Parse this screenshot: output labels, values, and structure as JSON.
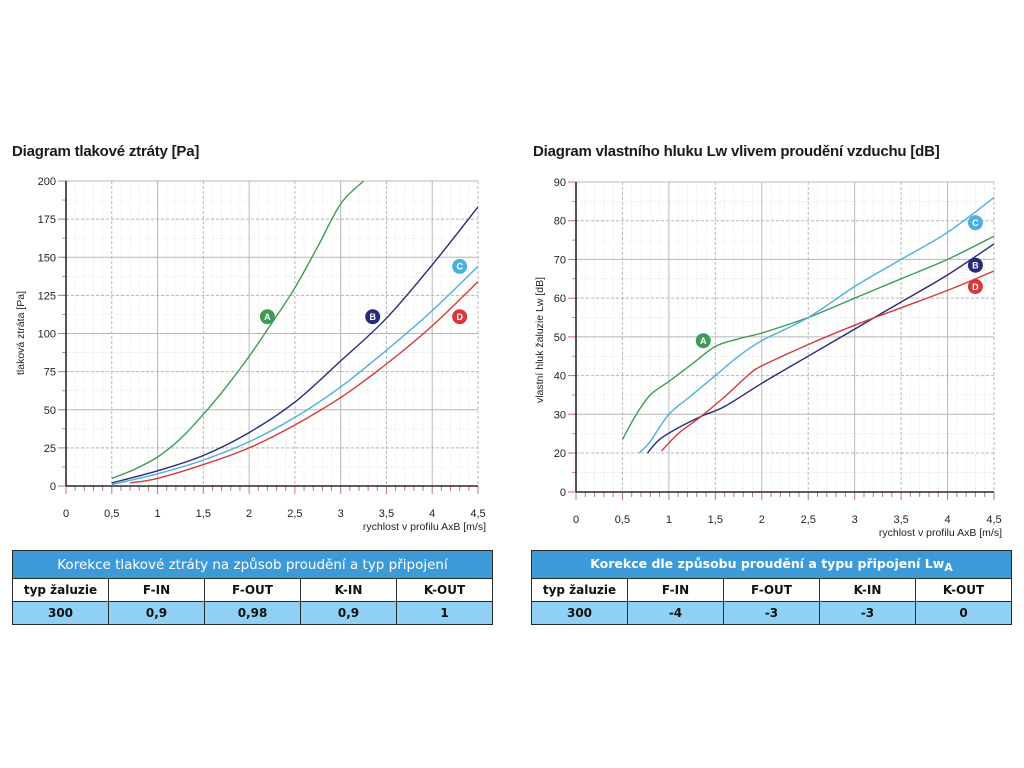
{
  "chart_data": [
    {
      "type": "line",
      "title": "Diagram tlakové ztráty [Pa]",
      "xlabel": "rychlost v profilu AxB [m/s]",
      "ylabel": "tlaková ztráta [Pa]",
      "xlim": [
        0,
        4.5
      ],
      "ylim": [
        0,
        200
      ],
      "x_ticks": [
        "0",
        "0,5",
        "1",
        "1,5",
        "2",
        "2,5",
        "3",
        "3,5",
        "4",
        "4,5"
      ],
      "y_ticks": [
        "0",
        "25",
        "50",
        "75",
        "100",
        "125",
        "150",
        "175",
        "200"
      ],
      "grid": true,
      "series": [
        {
          "name": "A",
          "color": "#3e9b55",
          "x": [
            0.5,
            0.75,
            1.0,
            1.25,
            1.5,
            1.75,
            2.0,
            2.25,
            2.5,
            2.75,
            3.0,
            3.25
          ],
          "y": [
            5,
            11,
            19,
            31,
            47,
            65,
            85,
            107,
            130,
            157,
            185,
            200
          ]
        },
        {
          "name": "B",
          "color": "#262c7a",
          "x": [
            0.5,
            1.0,
            1.5,
            2.0,
            2.5,
            3.0,
            3.5,
            4.0,
            4.5
          ],
          "y": [
            2,
            10,
            20,
            35,
            55,
            82,
            110,
            145,
            183
          ]
        },
        {
          "name": "C",
          "color": "#4bb0e0",
          "x": [
            0.5,
            1.0,
            1.5,
            2.0,
            2.5,
            3.0,
            3.5,
            4.0,
            4.5
          ],
          "y": [
            1,
            8,
            17,
            29,
            45,
            65,
            89,
            115,
            144
          ]
        },
        {
          "name": "D",
          "color": "#d7393a",
          "x": [
            0.7,
            1.0,
            1.5,
            2.0,
            2.5,
            3.0,
            3.5,
            4.0,
            4.5
          ],
          "y": [
            2,
            5,
            14,
            25,
            40,
            58,
            80,
            105,
            134
          ]
        }
      ],
      "labels": [
        {
          "text": "A",
          "x": 2.2,
          "y": 111
        },
        {
          "text": "B",
          "x": 3.35,
          "y": 111
        },
        {
          "text": "C",
          "x": 4.3,
          "y": 144
        },
        {
          "text": "D",
          "x": 4.3,
          "y": 111
        }
      ]
    },
    {
      "type": "line",
      "title": "Diagram vlastního hluku Lw vlivem proudění vzduchu [dB]",
      "xlabel": "rychlost v profilu AxB [m/s]",
      "ylabel": "vlastní hluk žaluzie Lw [dB]",
      "xlim": [
        0,
        4.5
      ],
      "ylim": [
        0,
        90
      ],
      "x_ticks": [
        "0",
        "0,5",
        "1",
        "1,5",
        "2",
        "2,5",
        "3",
        "3,5",
        "4",
        "4,5"
      ],
      "y_ticks": [
        "0",
        "20",
        "30",
        "40",
        "50",
        "60",
        "70",
        "80",
        "90"
      ],
      "grid": true,
      "series": [
        {
          "name": "A",
          "color": "#3e9b55",
          "x": [
            0.5,
            0.65,
            0.8,
            1.0,
            1.25,
            1.5,
            1.75,
            2.0,
            2.5,
            3.0,
            3.5,
            4.0,
            4.5
          ],
          "y": [
            23.5,
            30,
            35,
            38.5,
            43,
            47.5,
            49.5,
            51,
            55,
            60,
            65,
            70,
            76
          ]
        },
        {
          "name": "B",
          "color": "#262c7a",
          "x": [
            0.77,
            0.9,
            1.1,
            1.35,
            1.6,
            2.0,
            2.5,
            3.0,
            3.5,
            4.0,
            4.5
          ],
          "y": [
            20,
            23.5,
            26.5,
            29.5,
            32,
            38,
            45,
            52,
            59,
            66,
            74
          ]
        },
        {
          "name": "C",
          "color": "#4bb0e0",
          "x": [
            0.68,
            0.8,
            1.0,
            1.25,
            1.5,
            1.75,
            2.0,
            2.5,
            3.0,
            3.5,
            4.0,
            4.5
          ],
          "y": [
            20,
            23,
            30,
            35,
            40,
            45,
            49,
            55,
            63,
            70,
            77,
            86
          ]
        },
        {
          "name": "D",
          "color": "#d7393a",
          "x": [
            0.92,
            1.1,
            1.35,
            1.6,
            1.85,
            2.0,
            2.5,
            3.0,
            3.5,
            4.0,
            4.5
          ],
          "y": [
            20.5,
            25,
            29.5,
            34.5,
            40,
            42.5,
            48,
            53,
            57.5,
            62,
            67
          ]
        }
      ],
      "labels": [
        {
          "text": "A",
          "x": 1.37,
          "y": 49
        },
        {
          "text": "B",
          "x": 4.3,
          "y": 68.5
        },
        {
          "text": "C",
          "x": 4.3,
          "y": 79.5
        },
        {
          "text": "D",
          "x": 4.3,
          "y": 63
        }
      ]
    }
  ],
  "tables": [
    {
      "title": "Korekce tlakové ztráty na způsob proudění a typ připojení",
      "title_suffix": "",
      "columns": [
        "typ žaluzie",
        "F-IN",
        "F-OUT",
        "K-IN",
        "K-OUT"
      ],
      "values": [
        "300",
        "0,9",
        "0,98",
        "0,9",
        "1"
      ]
    },
    {
      "title": "Korekce dle způsobu proudění a typu připojení Lw",
      "title_suffix": "A",
      "columns": [
        "typ žaluzie",
        "F-IN",
        "F-OUT",
        "K-IN",
        "K-OUT"
      ],
      "values": [
        "300",
        "-4",
        "-3",
        "-3",
        "0"
      ]
    }
  ],
  "colors": {
    "table_header": "#3c9ad9",
    "table_values": "#8fd0f4",
    "axis": "#2a2a2a",
    "axis_tick": "#c9707a",
    "grid_major": "#b8b8b8",
    "grid_minor": "#e4e4e4"
  }
}
